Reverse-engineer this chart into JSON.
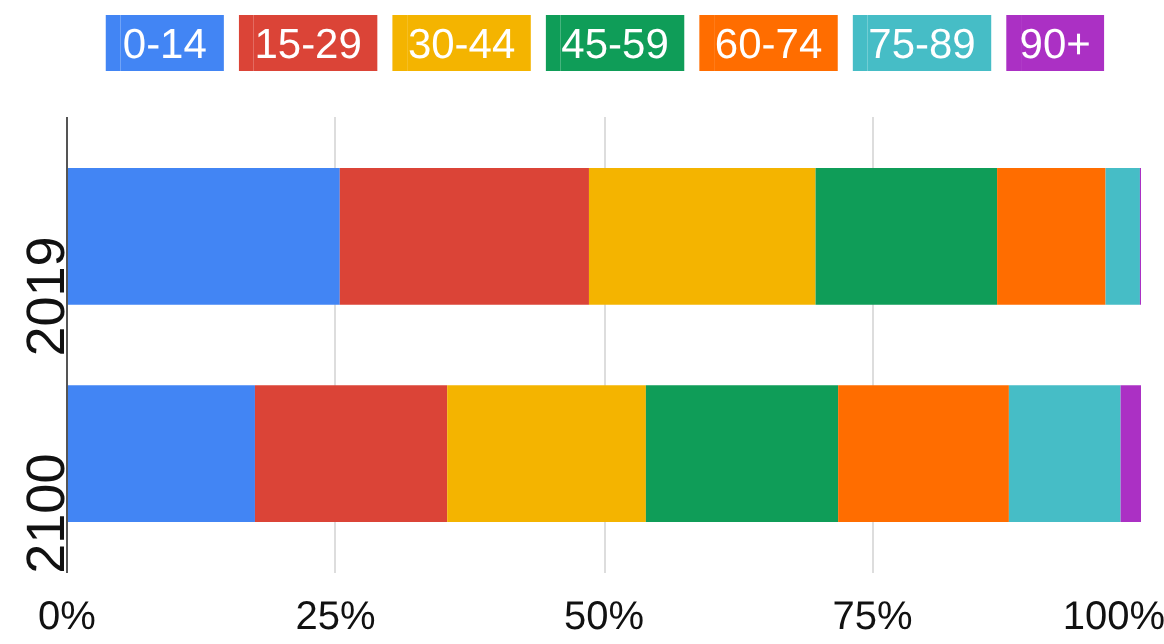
{
  "chart_data": {
    "type": "bar",
    "orientation": "horizontal",
    "stacked": true,
    "categories": [
      "2019",
      "2100"
    ],
    "series": [
      {
        "name": "0-14",
        "color": "#4285f4",
        "values": [
          25.4,
          17.5
        ]
      },
      {
        "name": "15-29",
        "color": "#db4437",
        "values": [
          23.2,
          17.9
        ]
      },
      {
        "name": "30-44",
        "color": "#f4b400",
        "values": [
          21.1,
          18.5
        ]
      },
      {
        "name": "45-59",
        "color": "#0f9d58",
        "values": [
          16.9,
          17.9
        ]
      },
      {
        "name": "60-74",
        "color": "#ff6d00",
        "values": [
          10.1,
          15.9
        ]
      },
      {
        "name": "75-89",
        "color": "#46bdc6",
        "values": [
          3.2,
          10.4
        ]
      },
      {
        "name": "90+",
        "color": "#ab30c4",
        "values": [
          0.1,
          1.9
        ]
      }
    ],
    "xlim": [
      0,
      100
    ],
    "xticks": [
      {
        "value": 0,
        "label": "0%"
      },
      {
        "value": 25,
        "label": "25%"
      },
      {
        "value": 50,
        "label": "50%"
      },
      {
        "value": 75,
        "label": "75%"
      },
      {
        "value": 100,
        "label": "100%"
      }
    ],
    "grid": "x",
    "legend": "top"
  }
}
